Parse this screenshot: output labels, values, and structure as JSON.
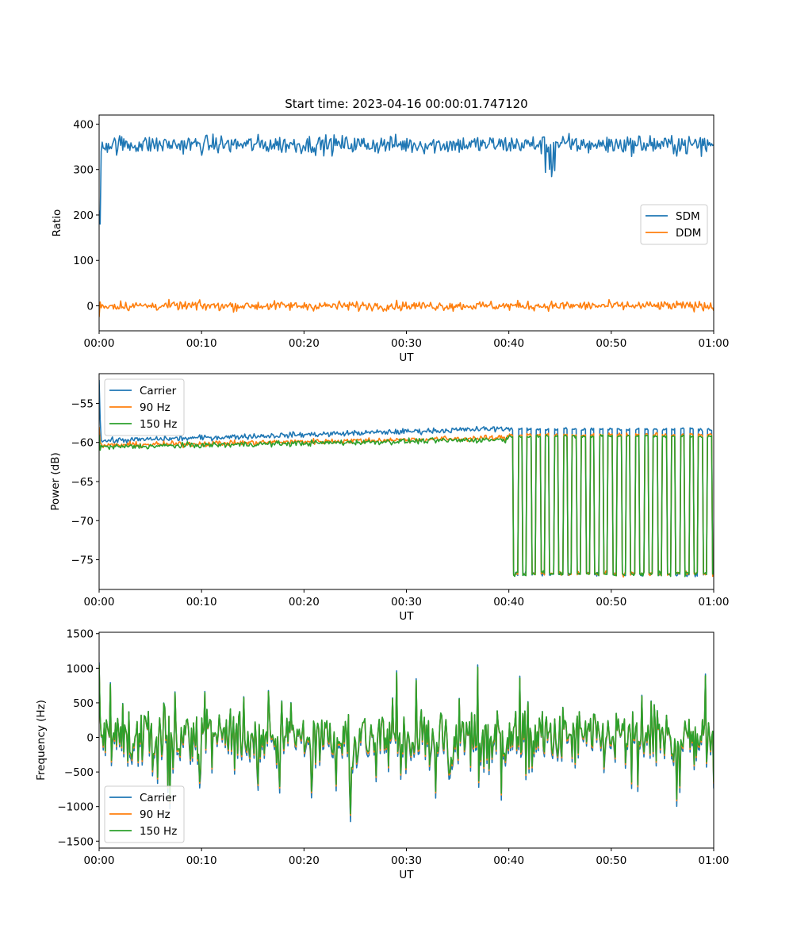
{
  "figure": {
    "title": "Start time: 2023-04-16 00:00:01.747120"
  },
  "chart_data": [
    {
      "type": "line",
      "title": "Start time: 2023-04-16 00:00:01.747120",
      "xlabel": "UT",
      "ylabel": "Ratio",
      "xlim": [
        0,
        60
      ],
      "ylim": [
        -55,
        420
      ],
      "xticks": [
        0,
        10,
        20,
        30,
        40,
        50,
        60
      ],
      "xtick_labels": [
        "00:00",
        "00:10",
        "00:20",
        "00:30",
        "00:40",
        "00:50",
        "01:00"
      ],
      "yticks": [
        0,
        100,
        200,
        300,
        400
      ],
      "ytick_labels": [
        "0",
        "100",
        "200",
        "300",
        "400"
      ],
      "legend": "center-right",
      "grid": false,
      "series": [
        {
          "name": "SDM",
          "color": "#1f77b4",
          "kind": "sdm",
          "base": 355,
          "noise": 20,
          "start": [
            210,
            180,
            340
          ]
        },
        {
          "name": "DDM",
          "color": "#ff7f0e",
          "kind": "ddm",
          "base": 0,
          "noise": 10,
          "start": [
            -25
          ]
        }
      ]
    },
    {
      "type": "line",
      "title": "",
      "xlabel": "UT",
      "ylabel": "Power (dB)",
      "xlim": [
        0,
        60
      ],
      "ylim": [
        -78.8,
        -51.2
      ],
      "xticks": [
        0,
        10,
        20,
        30,
        40,
        50,
        60
      ],
      "xtick_labels": [
        "00:00",
        "00:10",
        "00:20",
        "00:30",
        "00:40",
        "00:50",
        "01:00"
      ],
      "yticks": [
        -75,
        -70,
        -65,
        -60,
        -55
      ],
      "ytick_labels": [
        "−75",
        "−70",
        "−65",
        "−60",
        "−55"
      ],
      "legend": "upper-left",
      "grid": false,
      "oscillation_start": 40,
      "oscillation_low": -76.8,
      "series": [
        {
          "name": "Carrier",
          "color": "#1f77b4",
          "kind": "power",
          "base_start": -59.8,
          "base_end": -58.2,
          "high": -58.3,
          "start": [
            -52,
            -57
          ]
        },
        {
          "name": "90 Hz",
          "color": "#ff7f0e",
          "kind": "power",
          "base_start": -60.4,
          "base_end": -59.4,
          "high": -59.0,
          "start": [
            -58,
            -60
          ]
        },
        {
          "name": "150 Hz",
          "color": "#2ca02c",
          "kind": "power",
          "base_start": -60.6,
          "base_end": -59.6,
          "high": -59.2,
          "start": [
            -59,
            -61
          ]
        }
      ]
    },
    {
      "type": "line",
      "title": "",
      "xlabel": "UT",
      "ylabel": "Frequency (Hz)",
      "xlim": [
        0,
        60
      ],
      "ylim": [
        -1600,
        1520
      ],
      "xticks": [
        0,
        10,
        20,
        30,
        40,
        50,
        60
      ],
      "xtick_labels": [
        "00:00",
        "00:10",
        "00:20",
        "00:30",
        "00:40",
        "00:50",
        "01:00"
      ],
      "yticks": [
        -1500,
        -1000,
        -500,
        0,
        500,
        1000,
        1500
      ],
      "ytick_labels": [
        "−1500",
        "−1000",
        "−500",
        "0",
        "500",
        "1000",
        "1500"
      ],
      "legend": "lower-left",
      "grid": false,
      "series": [
        {
          "name": "Carrier",
          "color": "#1f77b4",
          "kind": "freq",
          "offset": -60,
          "scale": 1.05
        },
        {
          "name": "90 Hz",
          "color": "#ff7f0e",
          "kind": "freq",
          "offset": -25,
          "scale": 1.0
        },
        {
          "name": "150 Hz",
          "color": "#2ca02c",
          "kind": "freq",
          "offset": 0,
          "scale": 1.0
        }
      ]
    }
  ]
}
